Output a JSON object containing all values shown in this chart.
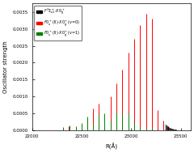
{
  "xlabel": "R(Å)",
  "ylabel": "Oscillator strength",
  "xlim": [
    22000,
    23600
  ],
  "ylim": [
    0,
    0.00375
  ],
  "red_lines": [
    [
      22310,
      8e-05
    ],
    [
      22370,
      0.00012
    ],
    [
      22440,
      0.0001
    ],
    [
      22500,
      0.0002
    ],
    [
      22560,
      0.00035
    ],
    [
      22615,
      0.00065
    ],
    [
      22670,
      0.0008
    ],
    [
      22730,
      0.0001
    ],
    [
      22790,
      0.001
    ],
    [
      22850,
      0.0014
    ],
    [
      22910,
      0.0018
    ],
    [
      22970,
      0.0023
    ],
    [
      23030,
      0.0027
    ],
    [
      23090,
      0.0031
    ],
    [
      23150,
      0.00345
    ],
    [
      23210,
      0.0033
    ],
    [
      23270,
      0.0006
    ],
    [
      23320,
      0.0003
    ],
    [
      23370,
      0.00012
    ],
    [
      23420,
      5e-05
    ]
  ],
  "green_lines": [
    [
      22310,
      0.0001
    ],
    [
      22380,
      0.00015
    ],
    [
      22440,
      0.00012
    ],
    [
      22500,
      0.00022
    ],
    [
      22560,
      0.0004
    ],
    [
      22615,
      0.00018
    ],
    [
      22670,
      0.00048
    ],
    [
      22730,
      0.0005
    ],
    [
      22790,
      0.00028
    ],
    [
      22850,
      0.00052
    ],
    [
      22910,
      0.00048
    ],
    [
      22970,
      0.0005
    ],
    [
      23030,
      0.00025
    ],
    [
      23090,
      0.0001
    ],
    [
      23150,
      5e-05
    ],
    [
      23210,
      8e-05
    ]
  ],
  "black_lines_start": 23350,
  "black_lines_end": 23580,
  "black_lines_count": 80,
  "black_lines_max_height": 0.00018,
  "yticks": [
    0.0,
    0.0005,
    0.001,
    0.0015,
    0.002,
    0.0025,
    0.003,
    0.0035
  ],
  "xticks": [
    22000,
    22500,
    23000,
    23500
  ],
  "background": "#ffffff"
}
